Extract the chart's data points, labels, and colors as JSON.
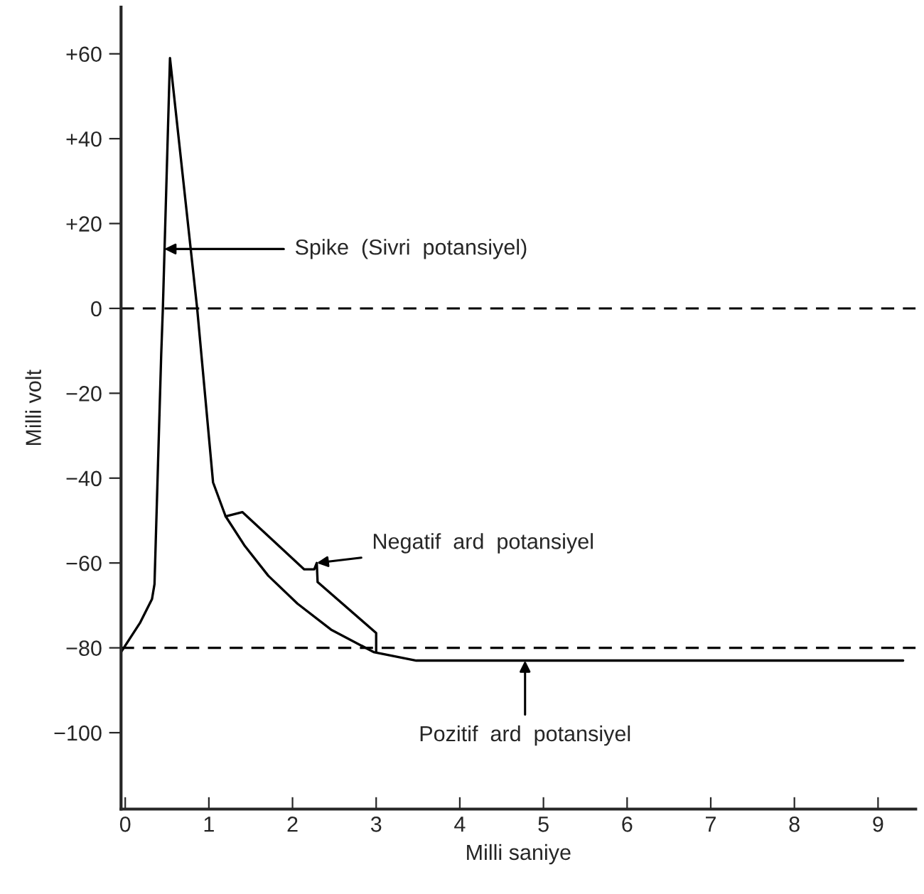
{
  "chart_data": {
    "type": "line",
    "xlabel": "Milli saniye",
    "ylabel": "Milli volt",
    "xlim": [
      -0.05,
      9.45
    ],
    "ylim": [
      -118,
      71
    ],
    "xticks": [
      0,
      1,
      2,
      3,
      4,
      5,
      6,
      7,
      8,
      9
    ],
    "yticks": [
      {
        "value": 60,
        "label": "+60"
      },
      {
        "value": 40,
        "label": "+40"
      },
      {
        "value": 20,
        "label": "+20"
      },
      0,
      {
        "value": -20,
        "label": "−20"
      },
      {
        "value": -40,
        "label": "−40"
      },
      {
        "value": -60,
        "label": "−60"
      },
      {
        "value": -80,
        "label": "−80"
      },
      {
        "value": -100,
        "label": "−100"
      }
    ],
    "series": [
      {
        "color": "#000000",
        "x": [
          -0.05,
          0.18,
          0.32,
          0.35,
          0.43,
          0.45,
          0.535,
          0.86,
          1.05,
          1.2,
          1.43,
          1.71,
          2.06,
          2.46,
          2.97,
          3.48,
          3.56,
          9.3
        ],
        "values": [
          -81,
          -74,
          -68.5,
          -65,
          -11,
          0,
          59,
          0,
          -41,
          -49,
          -56,
          -63,
          -69.6,
          -75.7,
          -81,
          -83,
          -83,
          -83
        ]
      },
      {
        "color": "#000000",
        "x": [
          1.2,
          1.4,
          2.14,
          2.26,
          2.29,
          2.3,
          3.0,
          3.0
        ],
        "values": [
          -49,
          -48,
          -61.5,
          -61.5,
          -60,
          -64.5,
          -76.5,
          -81
        ]
      }
    ],
    "ref_lines": [
      {
        "axis": "y",
        "value": 0,
        "line_style": "dashed",
        "color": "#000000"
      },
      {
        "axis": "y",
        "value": -80,
        "line_style": "dashed",
        "color": "#000000"
      }
    ],
    "annotations": [
      {
        "text": "Spike  (Sivri  potansiyel)",
        "x": 0.4675,
        "y": 14
      },
      {
        "text": "Negatif  ard  potansiyel",
        "x": 2.29,
        "y": -60
      },
      {
        "text": "Pozitif  ard  potansiyel",
        "x": 4.78,
        "y": -83
      }
    ],
    "grid": false,
    "legend": false,
    "marker": "none",
    "line_style": "solid"
  }
}
